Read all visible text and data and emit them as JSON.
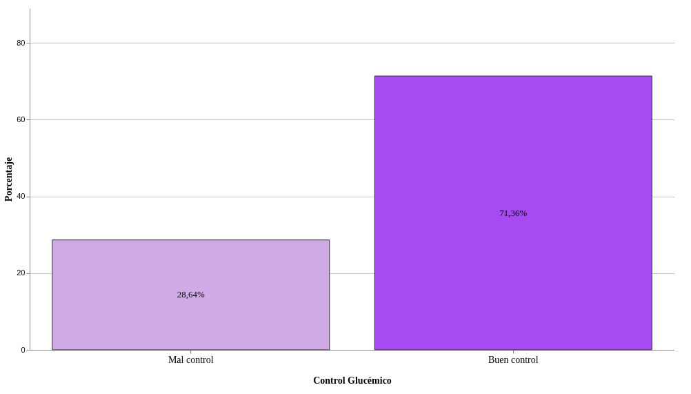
{
  "chart_data": {
    "type": "bar",
    "xlabel": "Control Glucémico",
    "ylabel": "Porcentaje",
    "categories": [
      "Mal control",
      "Buen control"
    ],
    "values": [
      28.64,
      71.36
    ],
    "colors": [
      "#d0aae4",
      "#a64af2"
    ],
    "value_labels": [
      "28,64%",
      "71,36%"
    ],
    "ylim": [
      0,
      89
    ],
    "yticks": [
      0,
      20,
      40,
      60,
      80
    ],
    "grid": "y",
    "legend": false
  }
}
